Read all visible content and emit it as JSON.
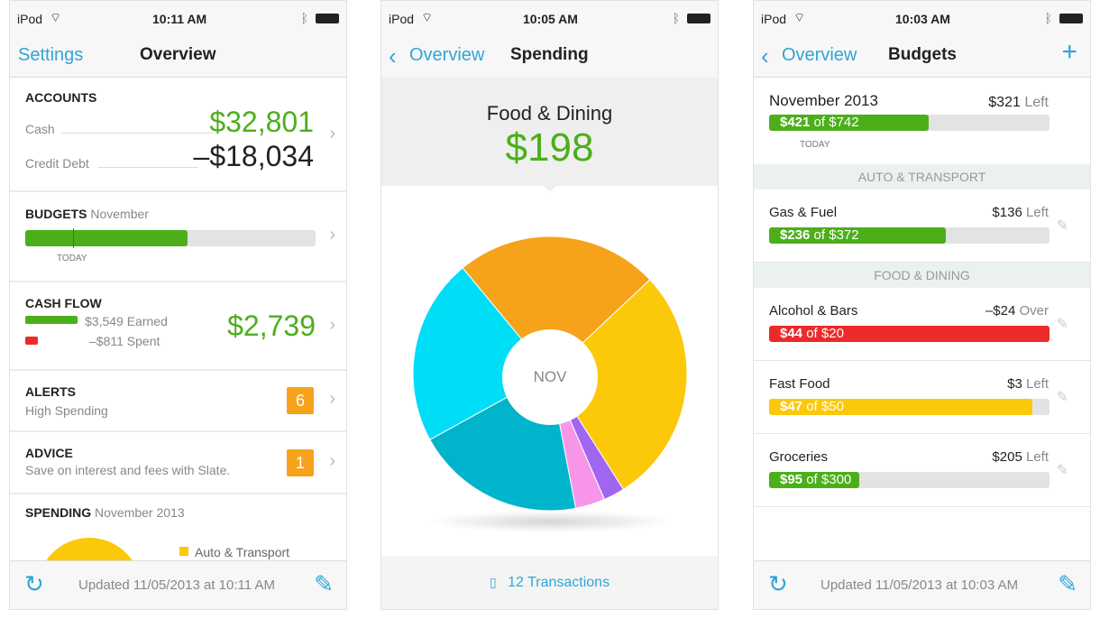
{
  "colors": {
    "accent": "#2fa6d6",
    "green": "#4caf1a",
    "red": "#ec2a2a",
    "orange": "#f7a21b",
    "yellow": "#fcc80a"
  },
  "screens": [
    {
      "status": {
        "device": "iPod",
        "time": "10:11 AM"
      },
      "nav": {
        "left": "Settings",
        "title": "Overview"
      },
      "accounts": {
        "title": "ACCOUNTS",
        "cash_label": "Cash",
        "cash_value": "$32,801",
        "debt_label": "Credit Debt",
        "debt_value": "–$18,034"
      },
      "budgets": {
        "title": "BUDGETS",
        "month": "November",
        "progress": 0.56,
        "today_label": "TODAY"
      },
      "cashflow": {
        "title": "CASH FLOW",
        "earned": "$3,549 Earned",
        "spent": "–$811 Spent",
        "net": "$2,739"
      },
      "alerts": {
        "title": "ALERTS",
        "detail": "High Spending",
        "count": "6"
      },
      "advice": {
        "title": "ADVICE",
        "detail": "Save on interest and fees with Slate.",
        "count": "1"
      },
      "spending": {
        "title": "SPENDING",
        "period": "November 2013",
        "legend": "Auto & Transport"
      },
      "toolbar": {
        "updated": "Updated 11/05/2013 at 10:11 AM",
        "refresh_icon": "refresh-icon",
        "compose_icon": "compose-icon"
      }
    },
    {
      "status": {
        "device": "iPod",
        "time": "10:05 AM"
      },
      "nav": {
        "back": "Overview",
        "title": "Spending"
      },
      "header": {
        "category": "Food & Dining",
        "amount": "$198"
      },
      "pie": {
        "center_label": "NOV",
        "slices": [
          {
            "color": "#f7a21b",
            "share": 0.24
          },
          {
            "color": "#fcc80a",
            "share": 0.28
          },
          {
            "color": "#a066f0",
            "share": 0.025
          },
          {
            "color": "#f796e8",
            "share": 0.035
          },
          {
            "color": "#00b4cc",
            "share": 0.2
          },
          {
            "color": "#00ddf7",
            "share": 0.22
          }
        ]
      },
      "footer": {
        "transactions": "12 Transactions"
      }
    },
    {
      "status": {
        "device": "iPod",
        "time": "10:03 AM"
      },
      "nav": {
        "back": "Overview",
        "title": "Budgets",
        "add": "+"
      },
      "summary": {
        "title": "November 2013",
        "left_amount": "$321",
        "left_label": "Left",
        "spent": "$421",
        "of": "of $742",
        "progress": 0.57,
        "today_label": "TODAY"
      },
      "sections": [
        {
          "header": "AUTO & TRANSPORT",
          "items": [
            {
              "name": "Gas & Fuel",
              "amount": "$136",
              "status": "Left",
              "spent": "$236",
              "of": "of $372",
              "progress": 0.63,
              "color": "#4caf1a"
            }
          ]
        },
        {
          "header": "FOOD & DINING",
          "items": [
            {
              "name": "Alcohol & Bars",
              "amount": "–$24",
              "status": "Over",
              "spent": "$44",
              "of": "of $20",
              "progress": 1.0,
              "color": "#ec2a2a"
            },
            {
              "name": "Fast Food",
              "amount": "$3",
              "status": "Left",
              "spent": "$47",
              "of": "of $50",
              "progress": 0.94,
              "color": "#fcc80a"
            },
            {
              "name": "Groceries",
              "amount": "$205",
              "status": "Left",
              "spent": "$95",
              "of": "of $300",
              "progress": 0.32,
              "color": "#4caf1a"
            }
          ]
        }
      ],
      "toolbar": {
        "updated": "Updated 11/05/2013 at 10:03 AM"
      }
    }
  ]
}
